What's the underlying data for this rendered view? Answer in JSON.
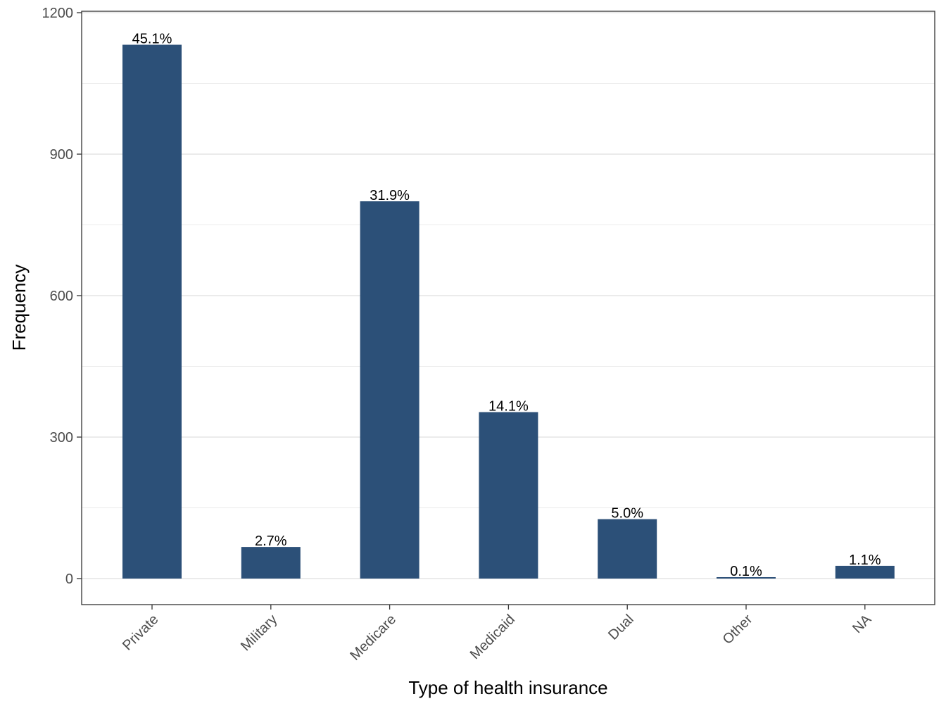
{
  "chart_data": {
    "type": "bar",
    "title": "",
    "xlabel": "Type of health insurance",
    "ylabel": "Frequency",
    "categories": [
      "Private",
      "Military",
      "Medicare",
      "Medicaid",
      "Dual",
      "Other",
      "NA"
    ],
    "values": [
      1132,
      67,
      800,
      353,
      126,
      3,
      27
    ],
    "data_labels": [
      "45.1%",
      "2.7%",
      "31.9%",
      "14.1%",
      "5.0%",
      "0.1%",
      "1.1%"
    ],
    "ylim": [
      -90,
      1200
    ],
    "yticks": [
      0,
      300,
      600,
      900,
      1200
    ],
    "y_minor_gridlines": [
      150,
      450,
      750,
      1050
    ],
    "grid": true,
    "legend": "none",
    "bar_color": "#2c5078",
    "gridline_color": "#ebebeb",
    "x_tick_label_rotation": -45
  }
}
